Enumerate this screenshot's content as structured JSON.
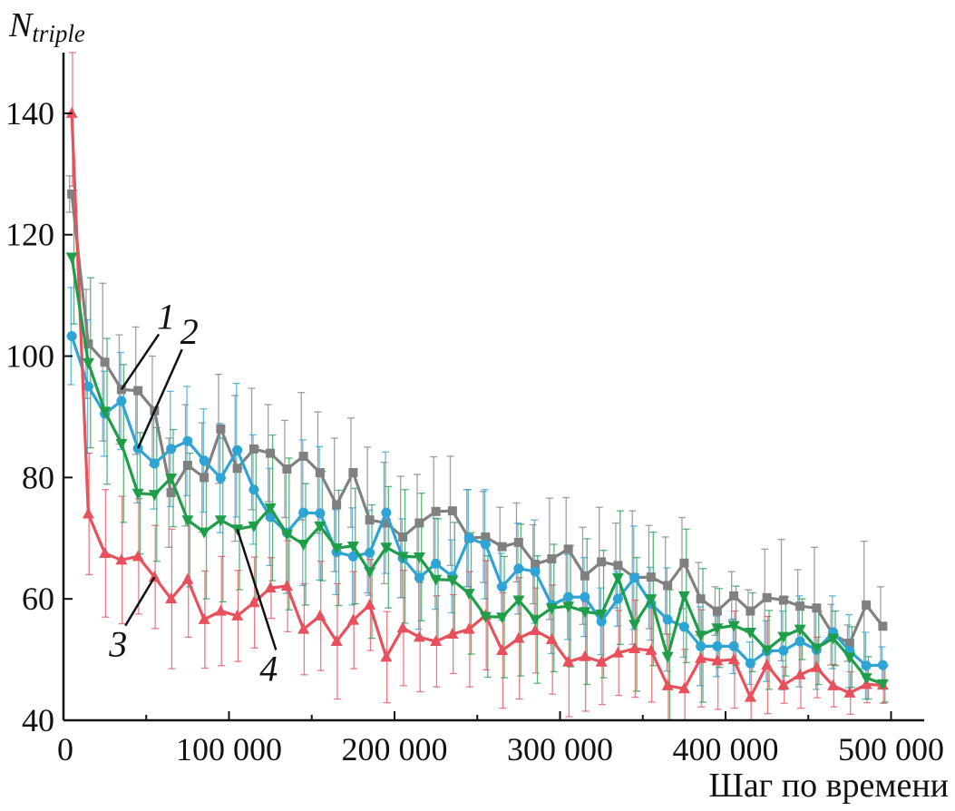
{
  "chart_data": {
    "type": "line",
    "ylabel_main": "N",
    "ylabel_sub": "triple",
    "xlabel": "Шаг по времени",
    "xlim": [
      0,
      520000
    ],
    "ylim": [
      40,
      150
    ],
    "x_ticks": [
      0,
      100000,
      200000,
      300000,
      400000,
      500000
    ],
    "x_tick_labels": [
      "0",
      "100 000",
      "200 000",
      "300 000",
      "400 000",
      "500 000"
    ],
    "y_ticks": [
      40,
      60,
      80,
      100,
      120,
      140
    ],
    "y_tick_labels": [
      "40",
      "60",
      "80",
      "100",
      "120",
      "140"
    ],
    "x": [
      5000,
      15000,
      25000,
      35000,
      45000,
      55000,
      65000,
      75000,
      85000,
      95000,
      105000,
      115000,
      125000,
      135000,
      145000,
      155000,
      165000,
      175000,
      185000,
      195000,
      205000,
      215000,
      225000,
      235000,
      245000,
      255000,
      265000,
      275000,
      285000,
      295000,
      305000,
      315000,
      325000,
      335000,
      345000,
      355000,
      365000,
      375000,
      385000,
      395000,
      405000,
      415000,
      425000,
      435000,
      445000,
      455000,
      465000,
      475000,
      485000,
      495000
    ],
    "series": [
      {
        "label": "1",
        "color": "#808080",
        "marker": "square",
        "values": [
          126.7,
          102,
          99,
          94.5,
          94.3,
          91,
          77.5,
          82,
          80,
          88,
          81.5,
          84.7,
          84,
          81.4,
          83.5,
          80.8,
          75.5,
          80.8,
          73,
          72.5,
          70.2,
          72.5,
          74.4,
          74.5,
          70,
          70.2,
          68.6,
          69.3,
          65.7,
          66.6,
          68.2,
          63.8,
          66.1,
          65.5,
          63.5,
          63.6,
          62.2,
          65.9,
          60,
          58,
          60.5,
          58,
          60.2,
          59.8,
          58.8,
          58.5,
          54.1,
          52.7,
          59,
          55.5
        ],
        "err": [
          3,
          9,
          13,
          9,
          10.5,
          9,
          9,
          10,
          9,
          9,
          12,
          10,
          8,
          8,
          10.5,
          10,
          11,
          9,
          12,
          10,
          10,
          8,
          9,
          9,
          8,
          7.5,
          6.5,
          6.5,
          6.5,
          10,
          8.5,
          8,
          9,
          7,
          11,
          8.5,
          8,
          7.5,
          6,
          4,
          4,
          3.5,
          8,
          10,
          6,
          10,
          5,
          3,
          10.5,
          6.5
        ]
      },
      {
        "label": "2",
        "color": "#2ea4d4",
        "marker": "circle",
        "values": [
          103.3,
          95,
          90.5,
          92.6,
          84.8,
          82.3,
          84.7,
          86,
          82.8,
          79.9,
          84.5,
          78,
          73.5,
          70.9,
          74.2,
          74.1,
          67.7,
          67,
          67.6,
          74.2,
          66.7,
          63.5,
          65.8,
          63.7,
          70,
          69,
          62,
          65,
          64.5,
          59,
          60.3,
          60.3,
          56.3,
          60,
          63.5,
          59.2,
          56.6,
          55.4,
          52.2,
          52.2,
          52.2,
          49.4,
          51.4,
          51.5,
          53,
          51.6,
          54.5,
          51.4,
          49,
          49.1
        ],
        "err": [
          8,
          11,
          7,
          8,
          9,
          7.5,
          9.5,
          9,
          8.5,
          9,
          11,
          9,
          8,
          10,
          12,
          11,
          7,
          8,
          7,
          10,
          6.5,
          8.5,
          7.5,
          6,
          8,
          9,
          5.5,
          7.5,
          8.5,
          8,
          7,
          6.5,
          5.5,
          4.5,
          8.5,
          6,
          8.5,
          5,
          6.5,
          5,
          4.5,
          3.5,
          5,
          6.5,
          7.5,
          6.5,
          6,
          6,
          5.5,
          3
        ]
      },
      {
        "label": "3",
        "color": "#e8505b",
        "marker": "triangle-up",
        "values": [
          140,
          74,
          67.5,
          66.4,
          67,
          63.6,
          60,
          63.2,
          56.6,
          58,
          57.2,
          59.4,
          61.8,
          62.1,
          55,
          57.2,
          53,
          56.5,
          59,
          50.4,
          55.2,
          53.7,
          53,
          54.2,
          55,
          57.3,
          51.5,
          53.5,
          54.8,
          53.3,
          49.6,
          50.5,
          49.6,
          51.1,
          51.8,
          51.5,
          45.7,
          45.2,
          50.2,
          49.8,
          50,
          43.8,
          49.1,
          45.8,
          47.5,
          48.7,
          45.7,
          44.5,
          45.9,
          45.8
        ],
        "err": [
          12,
          10,
          10.5,
          10.5,
          9.5,
          8.5,
          11.5,
          9.5,
          8,
          9,
          7.5,
          7.5,
          5,
          7.5,
          7.5,
          9,
          9.5,
          8,
          7.5,
          7.5,
          9.5,
          9,
          7.5,
          6.5,
          9.5,
          9,
          9.5,
          10,
          7,
          9,
          9,
          9,
          7,
          7,
          8,
          8.5,
          8.5,
          6.5,
          8,
          8,
          8,
          5,
          8,
          3,
          5.5,
          5,
          3.5,
          3.5,
          3,
          3
        ]
      },
      {
        "label": "4",
        "color": "#1f9e4a",
        "marker": "triangle-down",
        "values": [
          116.3,
          98.9,
          90.9,
          85.6,
          77.4,
          77.2,
          79.9,
          73,
          71,
          73,
          71.5,
          72,
          75,
          70.7,
          69,
          72,
          68.4,
          68.7,
          64.5,
          68.5,
          67,
          66.9,
          63.2,
          63.1,
          60.9,
          57.1,
          57,
          59.8,
          56.6,
          58.5,
          58.8,
          57.9,
          57.5,
          63.5,
          55.8,
          60,
          50.5,
          60.5,
          54,
          55.2,
          55.6,
          54.5,
          51.6,
          53.8,
          55,
          51.9,
          53.5,
          50.4,
          47,
          46
        ],
        "err": [
          11,
          14,
          12,
          13,
          10,
          11,
          8,
          11,
          11,
          13.5,
          10,
          13,
          12,
          12.5,
          10,
          9,
          9.5,
          9.5,
          11,
          10,
          11,
          10.5,
          10,
          9.5,
          10,
          10,
          10,
          12.5,
          10.5,
          10.5,
          10,
          12,
          10.5,
          11,
          11,
          11,
          11,
          11,
          11,
          6.5,
          6.5,
          6.5,
          6.5,
          6.5,
          5,
          6,
          4.5,
          5,
          3.5,
          3
        ]
      }
    ],
    "annotations": [
      {
        "text": "1",
        "series": 0,
        "point_index": 3,
        "label_x": 62000,
        "label_y": 104.5
      },
      {
        "text": "2",
        "series": 1,
        "point_index": 4,
        "label_x": 76000,
        "label_y": 102
      },
      {
        "text": "3",
        "series": 2,
        "point_index": 5,
        "label_x": 33000,
        "label_y": 50.5
      },
      {
        "text": "4",
        "series": 3,
        "point_index": 10,
        "label_x": 124000,
        "label_y": 46.5
      }
    ]
  }
}
